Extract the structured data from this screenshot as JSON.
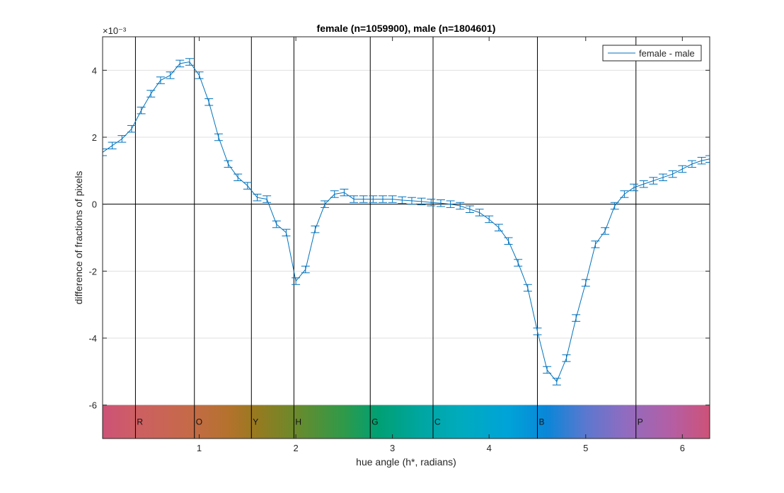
{
  "chart_data": {
    "type": "line",
    "title": "female (n=1059900), male (n=1804601)",
    "xlabel": "hue angle (h*, radians)",
    "ylabel": "difference of fractions of pixels",
    "exponent_label": "×10⁻³",
    "xlim": [
      0.0,
      6.2832
    ],
    "ylim": [
      -7.0,
      5.0
    ],
    "x_ticks": [
      1,
      2,
      3,
      4,
      5,
      6
    ],
    "x_tick_labels": [
      "1",
      "2",
      "3",
      "4",
      "5",
      "6"
    ],
    "y_ticks": [
      -6,
      -4,
      -2,
      0,
      2,
      4
    ],
    "y_tick_labels": [
      "-6",
      "-4",
      "-2",
      "0",
      "2",
      "4"
    ],
    "grid": true,
    "legend": {
      "position": "top-right",
      "entries": [
        "female - male"
      ]
    },
    "series": [
      {
        "name": "female - male",
        "color": "#0072BD",
        "error": 0.1,
        "x": [
          0.0,
          0.1,
          0.2,
          0.3,
          0.4,
          0.5,
          0.6,
          0.7,
          0.8,
          0.9,
          1.0,
          1.1,
          1.2,
          1.3,
          1.4,
          1.5,
          1.6,
          1.7,
          1.8,
          1.9,
          2.0,
          2.1,
          2.2,
          2.3,
          2.4,
          2.5,
          2.6,
          2.7,
          2.8,
          2.9,
          3.0,
          3.1,
          3.2,
          3.3,
          3.4,
          3.5,
          3.6,
          3.7,
          3.8,
          3.9,
          4.0,
          4.1,
          4.2,
          4.3,
          4.4,
          4.5,
          4.6,
          4.7,
          4.8,
          4.9,
          5.0,
          5.1,
          5.2,
          5.3,
          5.4,
          5.5,
          5.6,
          5.7,
          5.8,
          5.9,
          6.0,
          6.1,
          6.2,
          6.2832
        ],
        "y": [
          1.55,
          1.75,
          1.95,
          2.25,
          2.8,
          3.3,
          3.7,
          3.85,
          4.2,
          4.25,
          3.85,
          3.05,
          2.0,
          1.2,
          0.8,
          0.55,
          0.2,
          0.15,
          -0.6,
          -0.85,
          -2.3,
          -1.95,
          -0.75,
          0.0,
          0.3,
          0.35,
          0.15,
          0.15,
          0.15,
          0.15,
          0.15,
          0.12,
          0.1,
          0.08,
          0.05,
          0.03,
          0.0,
          -0.05,
          -0.15,
          -0.25,
          -0.45,
          -0.7,
          -1.1,
          -1.75,
          -2.5,
          -3.8,
          -4.95,
          -5.3,
          -4.6,
          -3.4,
          -2.35,
          -1.2,
          -0.8,
          -0.05,
          0.3,
          0.5,
          0.6,
          0.7,
          0.8,
          0.9,
          1.05,
          1.2,
          1.3,
          1.35
        ]
      }
    ],
    "hue_boundaries": [
      0.34,
      0.95,
      1.54,
      1.98,
      2.77,
      3.42,
      4.5,
      5.52
    ],
    "hue_bands": [
      {
        "letter": "R",
        "x": 0.34
      },
      {
        "letter": "O",
        "x": 0.95
      },
      {
        "letter": "Y",
        "x": 1.54
      },
      {
        "letter": "H",
        "x": 1.98
      },
      {
        "letter": "G",
        "x": 2.77
      },
      {
        "letter": "C",
        "x": 3.42
      },
      {
        "letter": "B",
        "x": 4.5
      },
      {
        "letter": "P",
        "x": 5.52
      }
    ],
    "colorbar_range": [
      -7.0,
      -6.0
    ],
    "colorbar_stops": [
      {
        "x": 0.0,
        "color": "#cd5277"
      },
      {
        "x": 0.35,
        "color": "#cd5f63"
      },
      {
        "x": 0.9,
        "color": "#c56a48"
      },
      {
        "x": 1.3,
        "color": "#b4722d"
      },
      {
        "x": 1.6,
        "color": "#967a1f"
      },
      {
        "x": 2.0,
        "color": "#6a8a2c"
      },
      {
        "x": 2.5,
        "color": "#2e9a4a"
      },
      {
        "x": 2.85,
        "color": "#00a073"
      },
      {
        "x": 3.3,
        "color": "#00a6a1"
      },
      {
        "x": 3.7,
        "color": "#00abbd"
      },
      {
        "x": 4.2,
        "color": "#00a3d8"
      },
      {
        "x": 4.6,
        "color": "#0a86d8"
      },
      {
        "x": 5.0,
        "color": "#5b78cf"
      },
      {
        "x": 5.4,
        "color": "#8f6cc0"
      },
      {
        "x": 5.9,
        "color": "#b55ea3"
      },
      {
        "x": 6.2832,
        "color": "#cd5277"
      }
    ]
  }
}
